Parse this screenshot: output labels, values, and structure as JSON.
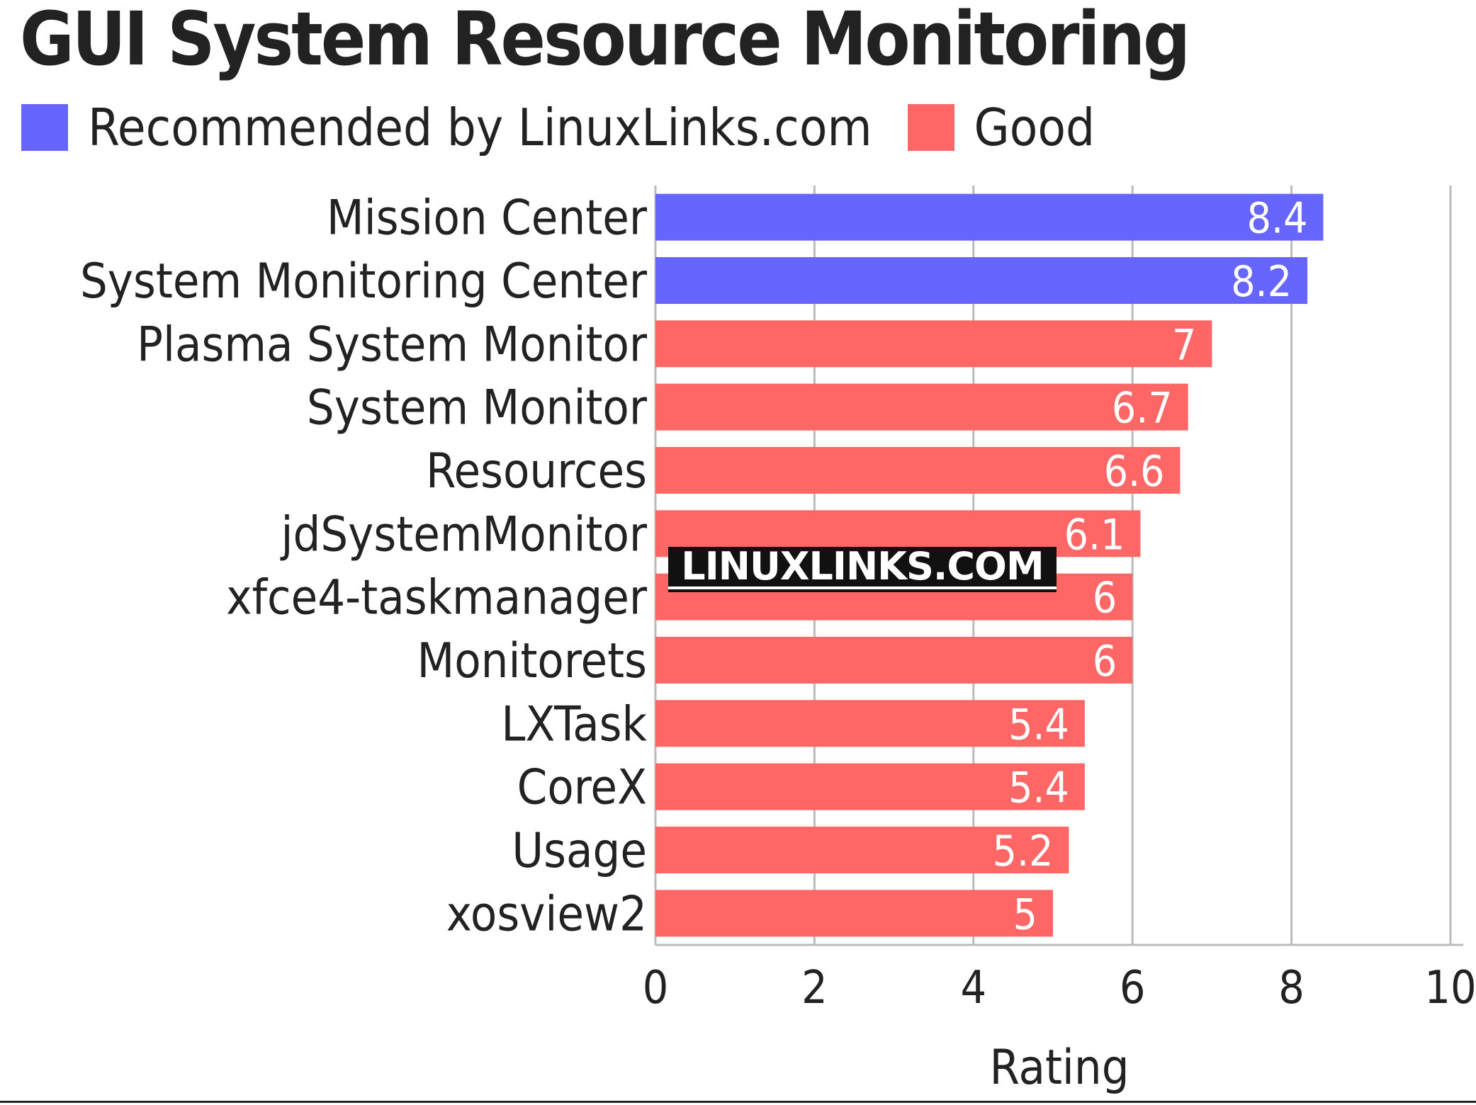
{
  "chart_data": {
    "type": "bar",
    "orientation": "horizontal",
    "title": "GUI System Resource Monitoring",
    "xlabel": "Rating",
    "ylabel": "",
    "xlim": [
      0,
      10
    ],
    "xticks": [
      0,
      2,
      4,
      6,
      8,
      10
    ],
    "grid": "vertical",
    "legend_position": "top-left",
    "legend": [
      {
        "name": "Recommended by LinuxLinks.com",
        "color": "#6666ff"
      },
      {
        "name": "Good",
        "color": "#ff6666"
      }
    ],
    "categories": [
      "Mission Center",
      "System Monitoring Center",
      "Plasma System Monitor",
      "System Monitor",
      "Resources",
      "jdSystemMonitor",
      "xfce4-taskmanager",
      "Monitorets",
      "LXTask",
      "CoreX",
      "Usage",
      "xosview2"
    ],
    "values": [
      8.4,
      8.2,
      7,
      6.7,
      6.6,
      6.1,
      6,
      6,
      5.4,
      5.4,
      5.2,
      5
    ],
    "value_labels": [
      "8.4",
      "8.2",
      "7",
      "6.7",
      "6.6",
      "6.1",
      "6",
      "6",
      "5.4",
      "5.4",
      "5.2",
      "5"
    ],
    "groups": [
      "Recommended by LinuxLinks.com",
      "Recommended by LinuxLinks.com",
      "Good",
      "Good",
      "Good",
      "Good",
      "Good",
      "Good",
      "Good",
      "Good",
      "Good",
      "Good"
    ]
  },
  "watermark": "LINUXLINKS.COM",
  "colors": {
    "recommended": "#6666ff",
    "good": "#ff6666",
    "grid": "#bbbbbb",
    "text": "#222222"
  }
}
